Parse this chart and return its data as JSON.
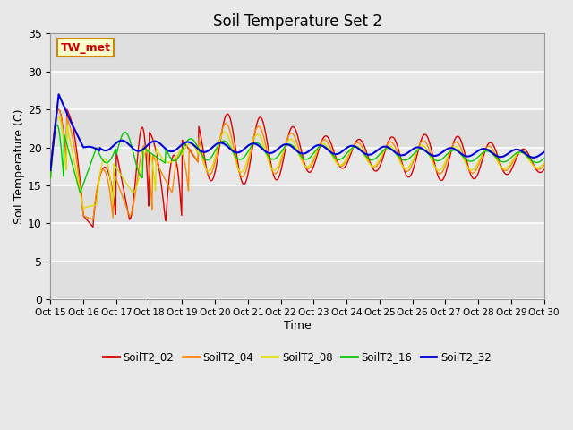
{
  "title": "Soil Temperature Set 2",
  "xlabel": "Time",
  "ylabel": "Soil Temperature (C)",
  "ylim": [
    0,
    35
  ],
  "yticks": [
    0,
    5,
    10,
    15,
    20,
    25,
    30,
    35
  ],
  "xtick_labels": [
    "Oct 15",
    "Oct 16",
    "Oct 17",
    "Oct 18",
    "Oct 19",
    "Oct 20",
    "Oct 21",
    "Oct 22",
    "Oct 23",
    "Oct 24",
    "Oct 25",
    "Oct 26",
    "Oct 27",
    "Oct 28",
    "Oct 29",
    "Oct 30"
  ],
  "series_colors": {
    "SoilT2_02": "#dd0000",
    "SoilT2_04": "#ff8800",
    "SoilT2_08": "#dddd00",
    "SoilT2_16": "#00cc00",
    "SoilT2_32": "#0000dd"
  },
  "annotation_text": "TW_met",
  "annotation_color": "#cc0000",
  "annotation_bg": "#ffffcc",
  "annotation_border": "#cc8800",
  "plot_bg_color": "#e8e8e8",
  "grid_color": "#ffffff",
  "title_fontsize": 12
}
